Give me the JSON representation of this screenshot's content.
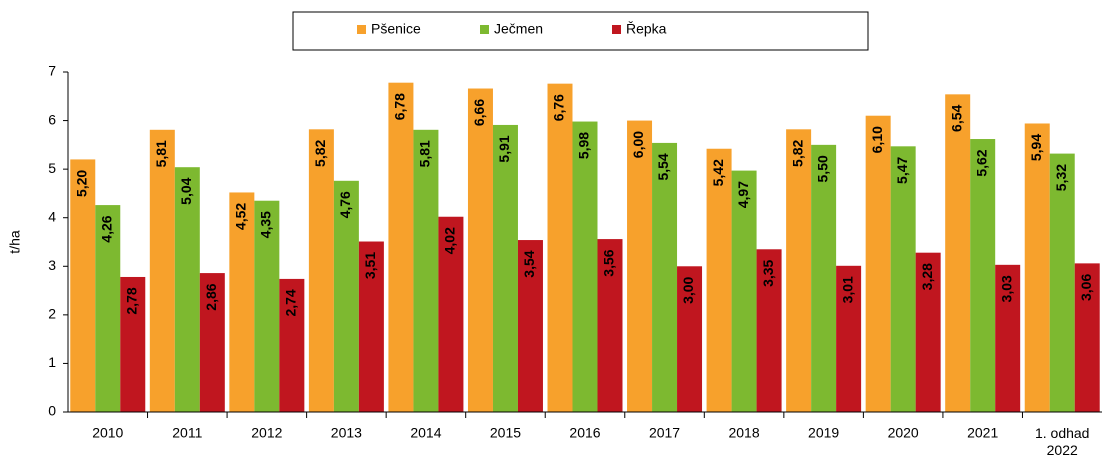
{
  "chart_data": {
    "type": "bar",
    "categories": [
      "2010",
      "2011",
      "2012",
      "2013",
      "2014",
      "2015",
      "2016",
      "2017",
      "2018",
      "2019",
      "2020",
      "2021",
      "1. odhad\n2022"
    ],
    "y_label": "t/ha",
    "series": [
      {
        "name": "Pšenice",
        "color": "#f7a12c",
        "label_color": "#000000",
        "values": [
          5.2,
          5.81,
          4.52,
          5.82,
          6.78,
          6.66,
          6.76,
          6.0,
          5.42,
          5.82,
          6.1,
          6.54,
          5.94
        ],
        "value_labels": [
          "5,20",
          "5,81",
          "4,52",
          "5,82",
          "6,78",
          "6,66",
          "6,76",
          "6,00",
          "5,42",
          "5,82",
          "6,10",
          "6,54",
          "5,94"
        ]
      },
      {
        "name": "Ječmen",
        "color": "#7db930",
        "label_color": "#000000",
        "values": [
          4.26,
          5.04,
          4.35,
          4.76,
          5.81,
          5.91,
          5.98,
          5.54,
          4.97,
          5.5,
          5.47,
          5.62,
          5.32
        ],
        "value_labels": [
          "4,26",
          "5,04",
          "4,35",
          "4,76",
          "5,81",
          "5,91",
          "5,98",
          "5,54",
          "4,97",
          "5,50",
          "5,47",
          "5,62",
          "5,32"
        ]
      },
      {
        "name": "Řepka",
        "color": "#c0161f",
        "label_color": "#ffffff",
        "values": [
          2.78,
          2.86,
          2.74,
          3.51,
          4.02,
          3.54,
          3.56,
          3.0,
          3.35,
          3.01,
          3.28,
          3.03,
          3.06
        ],
        "value_labels": [
          "2,78",
          "2,86",
          "2,74",
          "3,51",
          "4,02",
          "3,54",
          "3,56",
          "3,00",
          "3,35",
          "3,01",
          "3,28",
          "3,03",
          "3,06"
        ]
      }
    ],
    "ylim": [
      0,
      7
    ],
    "yticks": [
      0,
      1,
      2,
      3,
      4,
      5,
      6,
      7
    ],
    "grid": false,
    "legend": "top"
  }
}
